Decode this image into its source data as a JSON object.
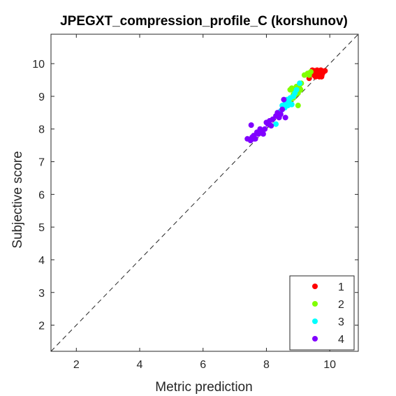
{
  "chart_data": {
    "type": "scatter",
    "title": "JPEGXT_compression_profile_C (korshunov)",
    "xlabel": "Metric prediction",
    "ylabel": "Subjective score",
    "xlim": [
      1.2,
      10.9
    ],
    "ylim": [
      1.2,
      10.9
    ],
    "xticks": [
      2,
      4,
      6,
      8,
      10
    ],
    "yticks": [
      2,
      3,
      4,
      5,
      6,
      7,
      8,
      9,
      10
    ],
    "grid": false,
    "legend_position": "bottom-right",
    "reference_line": "dashed diagonal y = x",
    "series": [
      {
        "name": "1",
        "color": "#ff0000",
        "points": [
          [
            9.35,
            9.55
          ],
          [
            9.4,
            9.7
          ],
          [
            9.45,
            9.8
          ],
          [
            9.5,
            9.65
          ],
          [
            9.52,
            9.75
          ],
          [
            9.55,
            9.6
          ],
          [
            9.57,
            9.7
          ],
          [
            9.6,
            9.8
          ],
          [
            9.62,
            9.65
          ],
          [
            9.65,
            9.75
          ],
          [
            9.67,
            9.6
          ],
          [
            9.7,
            9.7
          ],
          [
            9.72,
            9.8
          ],
          [
            9.75,
            9.65
          ],
          [
            9.78,
            9.72
          ],
          [
            9.8,
            9.75
          ],
          [
            9.62,
            9.72
          ],
          [
            9.68,
            9.67
          ],
          [
            9.58,
            9.62
          ],
          [
            9.85,
            9.78
          ],
          [
            9.53,
            9.78
          ],
          [
            9.74,
            9.6
          ]
        ]
      },
      {
        "name": "2",
        "color": "#80ff00",
        "points": [
          [
            8.75,
            9.2
          ],
          [
            8.8,
            9.25
          ],
          [
            8.85,
            9.05
          ],
          [
            8.9,
            9.15
          ],
          [
            8.95,
            9.3
          ],
          [
            9.0,
            9.1
          ],
          [
            9.05,
            9.25
          ],
          [
            9.0,
            8.72
          ],
          [
            9.1,
            9.4
          ],
          [
            9.2,
            9.65
          ],
          [
            9.3,
            9.7
          ],
          [
            9.35,
            9.65
          ],
          [
            9.4,
            9.75
          ],
          [
            8.75,
            8.88
          ],
          [
            8.82,
            9.2
          ],
          [
            8.92,
            9.05
          ],
          [
            9.08,
            9.2
          ],
          [
            9.02,
            9.32
          ],
          [
            8.85,
            8.95
          ]
        ]
      },
      {
        "name": "3",
        "color": "#00ffff",
        "points": [
          [
            8.3,
            8.15
          ],
          [
            8.4,
            8.45
          ],
          [
            8.45,
            8.55
          ],
          [
            8.5,
            8.6
          ],
          [
            8.55,
            8.7
          ],
          [
            8.6,
            8.8
          ],
          [
            8.65,
            8.9
          ],
          [
            8.7,
            8.85
          ],
          [
            8.75,
            8.95
          ],
          [
            8.8,
            8.75
          ],
          [
            8.85,
            9.0
          ],
          [
            8.9,
            9.1
          ],
          [
            8.95,
            9.2
          ],
          [
            8.58,
            8.65
          ],
          [
            8.68,
            8.72
          ],
          [
            9.05,
            9.4
          ],
          [
            8.5,
            8.72
          ]
        ]
      },
      {
        "name": "4",
        "color": "#8000ff",
        "points": [
          [
            7.4,
            7.7
          ],
          [
            7.5,
            7.65
          ],
          [
            7.55,
            7.75
          ],
          [
            7.6,
            7.8
          ],
          [
            7.65,
            7.7
          ],
          [
            7.7,
            7.9
          ],
          [
            7.75,
            7.85
          ],
          [
            7.8,
            8.0
          ],
          [
            7.9,
            7.85
          ],
          [
            7.95,
            8.0
          ],
          [
            8.0,
            8.2
          ],
          [
            8.1,
            8.25
          ],
          [
            8.15,
            8.1
          ],
          [
            8.2,
            8.3
          ],
          [
            8.3,
            8.4
          ],
          [
            8.35,
            8.5
          ],
          [
            8.45,
            8.45
          ],
          [
            8.5,
            8.6
          ],
          [
            8.6,
            8.35
          ],
          [
            8.55,
            8.9
          ],
          [
            7.52,
            8.12
          ],
          [
            7.85,
            7.95
          ],
          [
            8.05,
            8.15
          ],
          [
            8.4,
            8.35
          ],
          [
            7.62,
            7.7
          ]
        ]
      }
    ]
  }
}
